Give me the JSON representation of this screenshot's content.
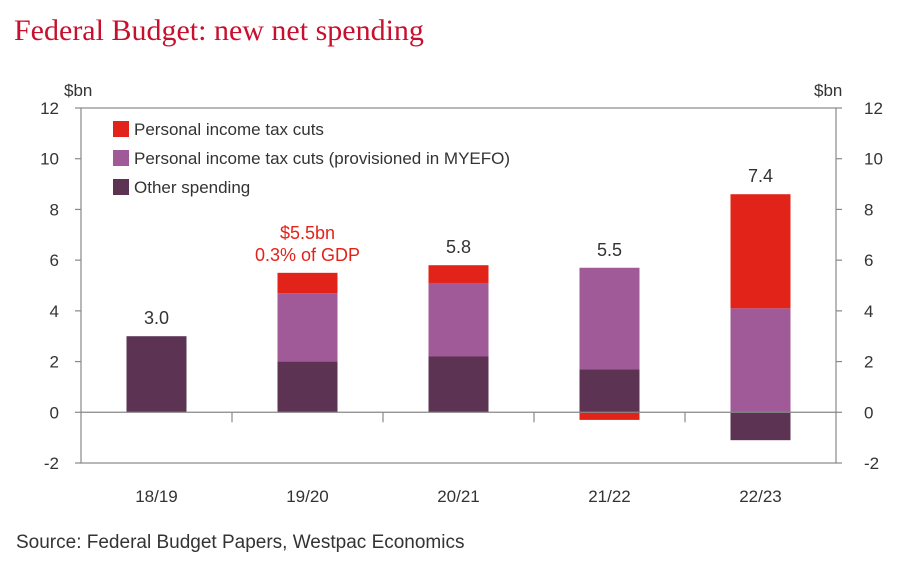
{
  "title": "Federal Budget: new net spending",
  "source": "Source: Federal Budget Papers, Westpac Economics",
  "chart_data": {
    "type": "bar",
    "stacked": true,
    "categories": [
      "18/19",
      "19/20",
      "20/21",
      "21/22",
      "22/23"
    ],
    "series": [
      {
        "name": "Personal income tax cuts",
        "color": "#e2231a",
        "values": [
          0,
          0.8,
          0.7,
          -0.3,
          4.5
        ]
      },
      {
        "name": "Personal income tax cuts (provisioned in MYEFO)",
        "color": "#a05a97",
        "values": [
          0,
          2.7,
          2.9,
          4.0,
          4.1
        ]
      },
      {
        "name": "Other spending",
        "color": "#5c3352",
        "values": [
          3.0,
          2.0,
          2.2,
          1.7,
          -1.1
        ]
      }
    ],
    "totals_labels": [
      "3.0",
      "",
      "5.8",
      "5.5",
      "7.4"
    ],
    "annotation": {
      "line1": "$5.5bn",
      "line2": "0.3% of GDP",
      "category": "19/20",
      "color": "#e2231a"
    },
    "ylabel_left": "$bn",
    "ylabel_right": "$bn",
    "ylim": [
      -2,
      12
    ],
    "yticks": [
      -2,
      0,
      2,
      4,
      6,
      8,
      10,
      12
    ],
    "grid": false,
    "legend_position": "top-left"
  }
}
